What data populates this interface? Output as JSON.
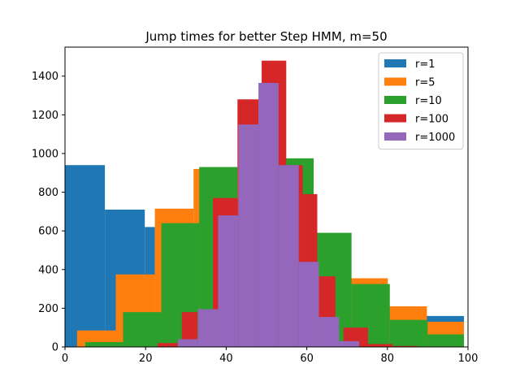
{
  "chart_data": {
    "type": "bar",
    "title": "Jump times for better Step HMM, m=50",
    "xlabel": "",
    "ylabel": "",
    "xlim": [
      0,
      100
    ],
    "ylim": [
      0,
      1550
    ],
    "xticks": [
      0,
      20,
      40,
      60,
      80,
      100
    ],
    "yticks": [
      0,
      200,
      400,
      600,
      800,
      1000,
      1200,
      1400
    ],
    "legend_position": "top-right",
    "series": [
      {
        "name": "r=1",
        "color": "#1f77b4",
        "bins": [
          {
            "x0": 0,
            "x1": 9.9,
            "value": 940
          },
          {
            "x0": 9.9,
            "x1": 19.8,
            "value": 710
          },
          {
            "x0": 19.8,
            "x1": 22.3,
            "value": 620
          },
          {
            "x0": 89.1,
            "x1": 99,
            "value": 160
          }
        ]
      },
      {
        "name": "r=5",
        "color": "#ff7f0e",
        "bins": [
          {
            "x0": 3,
            "x1": 12.6,
            "value": 85
          },
          {
            "x0": 12.6,
            "x1": 22.3,
            "value": 375
          },
          {
            "x0": 22.3,
            "x1": 31.9,
            "value": 715
          },
          {
            "x0": 31.9,
            "x1": 41.6,
            "value": 920
          },
          {
            "x0": 70.5,
            "x1": 80.1,
            "value": 355
          },
          {
            "x0": 80.1,
            "x1": 89.8,
            "value": 210
          },
          {
            "x0": 89.8,
            "x1": 99,
            "value": 130
          }
        ]
      },
      {
        "name": "r=10",
        "color": "#2ca02c",
        "bins": [
          {
            "x0": 5,
            "x1": 14.4,
            "value": 25
          },
          {
            "x0": 14.4,
            "x1": 23.9,
            "value": 180
          },
          {
            "x0": 23.9,
            "x1": 33.3,
            "value": 640
          },
          {
            "x0": 33.3,
            "x1": 42.8,
            "value": 930
          },
          {
            "x0": 52.2,
            "x1": 61.7,
            "value": 975
          },
          {
            "x0": 61.7,
            "x1": 71.1,
            "value": 590
          },
          {
            "x0": 71.1,
            "x1": 80.6,
            "value": 325
          },
          {
            "x0": 80.6,
            "x1": 90,
            "value": 140
          },
          {
            "x0": 90,
            "x1": 99,
            "value": 65
          }
        ]
      },
      {
        "name": "r=100",
        "color": "#d62728",
        "bins": [
          {
            "x0": 23,
            "x1": 28,
            "value": 20
          },
          {
            "x0": 29,
            "x1": 32.9,
            "value": 180
          },
          {
            "x0": 36.7,
            "x1": 42.8,
            "value": 770
          },
          {
            "x0": 42.8,
            "x1": 48.8,
            "value": 1280
          },
          {
            "x0": 48.8,
            "x1": 54.9,
            "value": 1480
          },
          {
            "x0": 54.9,
            "x1": 59,
            "value": 940
          },
          {
            "x0": 59,
            "x1": 62.6,
            "value": 790
          },
          {
            "x0": 62.6,
            "x1": 67.1,
            "value": 365
          },
          {
            "x0": 69.1,
            "x1": 75.2,
            "value": 100
          },
          {
            "x0": 75.2,
            "x1": 81.3,
            "value": 15
          },
          {
            "x0": 81.3,
            "x1": 87.5,
            "value": 5
          }
        ]
      },
      {
        "name": "r=1000",
        "color": "#9467bd",
        "bins": [
          {
            "x0": 28,
            "x1": 33,
            "value": 40
          },
          {
            "x0": 33,
            "x1": 38,
            "value": 195
          },
          {
            "x0": 38,
            "x1": 43,
            "value": 680
          },
          {
            "x0": 43,
            "x1": 48,
            "value": 1150
          },
          {
            "x0": 48,
            "x1": 53,
            "value": 1365
          },
          {
            "x0": 53,
            "x1": 58,
            "value": 940
          },
          {
            "x0": 58,
            "x1": 63,
            "value": 440
          },
          {
            "x0": 63,
            "x1": 68,
            "value": 155
          },
          {
            "x0": 68,
            "x1": 73,
            "value": 30
          }
        ]
      }
    ]
  }
}
